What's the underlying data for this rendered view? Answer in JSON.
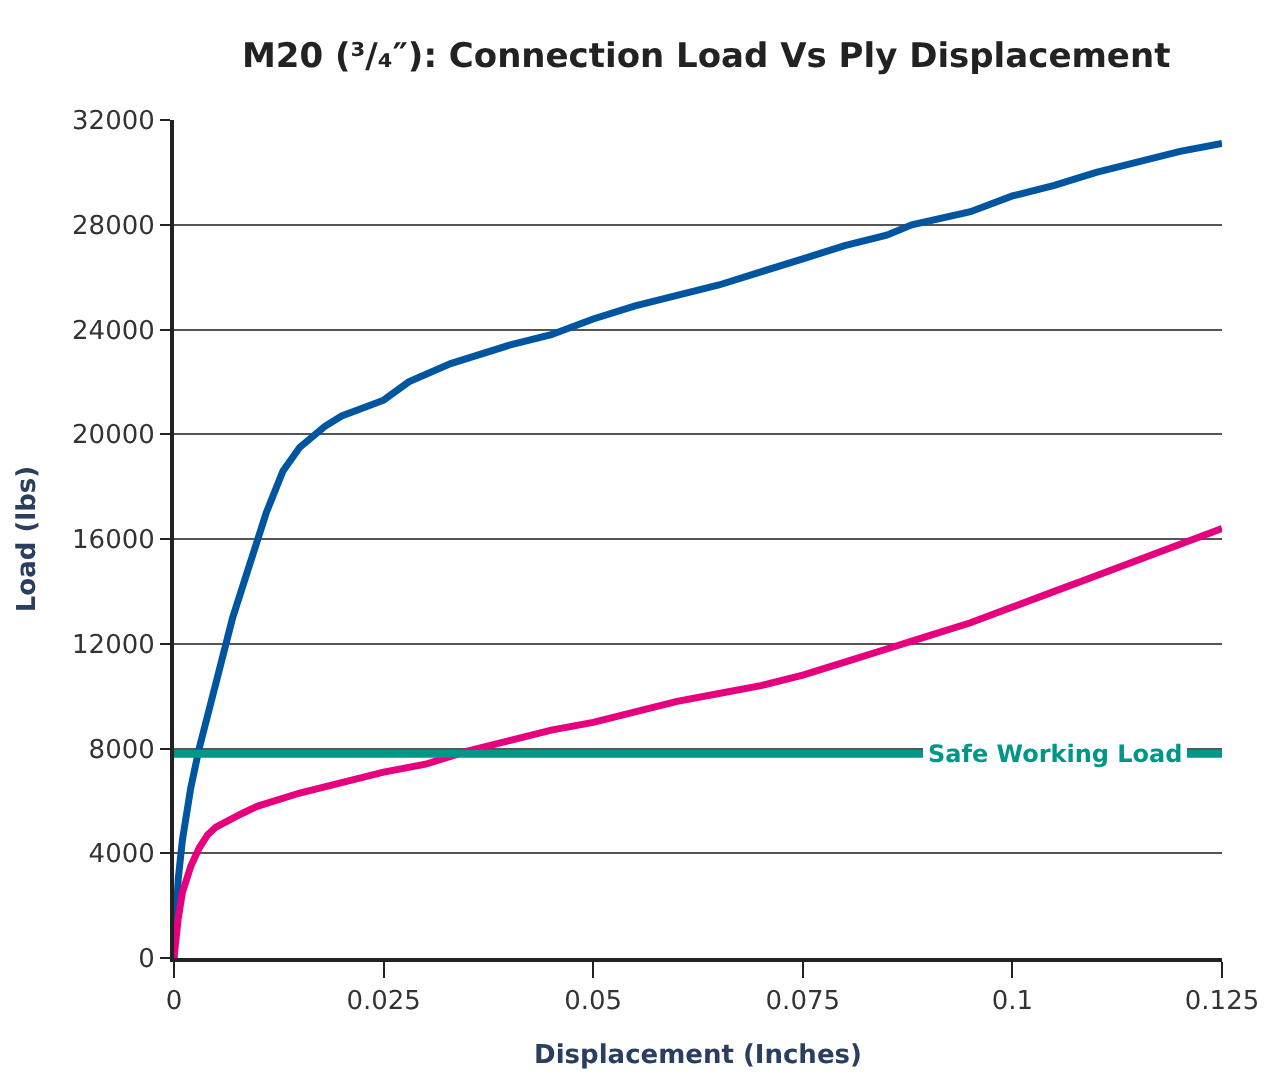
{
  "chart_data": {
    "type": "line",
    "title": "M20 (³/₄″): Connection Load Vs Ply Displacement",
    "xlabel": "Displacement (Inches)",
    "ylabel": "Load (lbs)",
    "xlim": [
      0,
      0.125
    ],
    "xticks": [
      0,
      0.025,
      0.05,
      0.075,
      0.1,
      0.125
    ],
    "ylim": [
      0,
      32000
    ],
    "yticks": [
      0,
      4000,
      8000,
      12000,
      16000,
      20000,
      24000,
      28000,
      32000
    ],
    "grid": "y",
    "series": [
      {
        "color": "#0055a0",
        "x": [
          0,
          0.0005,
          0.001,
          0.002,
          0.003,
          0.005,
          0.007,
          0.009,
          0.011,
          0.013,
          0.015,
          0.018,
          0.02,
          0.025,
          0.028,
          0.033,
          0.04,
          0.045,
          0.05,
          0.055,
          0.06,
          0.065,
          0.07,
          0.075,
          0.08,
          0.085,
          0.088,
          0.095,
          0.1,
          0.105,
          0.11,
          0.115,
          0.12,
          0.125
        ],
        "values": [
          0,
          3000,
          4500,
          6500,
          8000,
          10500,
          13000,
          15000,
          17000,
          18600,
          19500,
          20300,
          20700,
          21300,
          22000,
          22700,
          23400,
          23800,
          24400,
          24900,
          25300,
          25700,
          26200,
          26700,
          27200,
          27600,
          28000,
          28500,
          29100,
          29500,
          30000,
          30400,
          30800,
          31100
        ]
      },
      {
        "color": "#e6007e",
        "x": [
          0,
          0.0005,
          0.001,
          0.002,
          0.003,
          0.004,
          0.005,
          0.008,
          0.01,
          0.015,
          0.02,
          0.025,
          0.03,
          0.035,
          0.04,
          0.045,
          0.05,
          0.055,
          0.06,
          0.065,
          0.07,
          0.075,
          0.08,
          0.085,
          0.09,
          0.095,
          0.1,
          0.105,
          0.11,
          0.115,
          0.12,
          0.125
        ],
        "values": [
          0,
          1500,
          2500,
          3500,
          4200,
          4700,
          5000,
          5500,
          5800,
          6300,
          6700,
          7100,
          7400,
          7900,
          8300,
          8700,
          9000,
          9400,
          9800,
          10100,
          10400,
          10800,
          11300,
          11800,
          12300,
          12800,
          13400,
          14000,
          14600,
          15200,
          15800,
          16400
        ]
      }
    ],
    "ref_lines": [
      {
        "axis": "y",
        "value": 7800,
        "label": "Safe Working Load",
        "color": "#009688"
      }
    ]
  }
}
